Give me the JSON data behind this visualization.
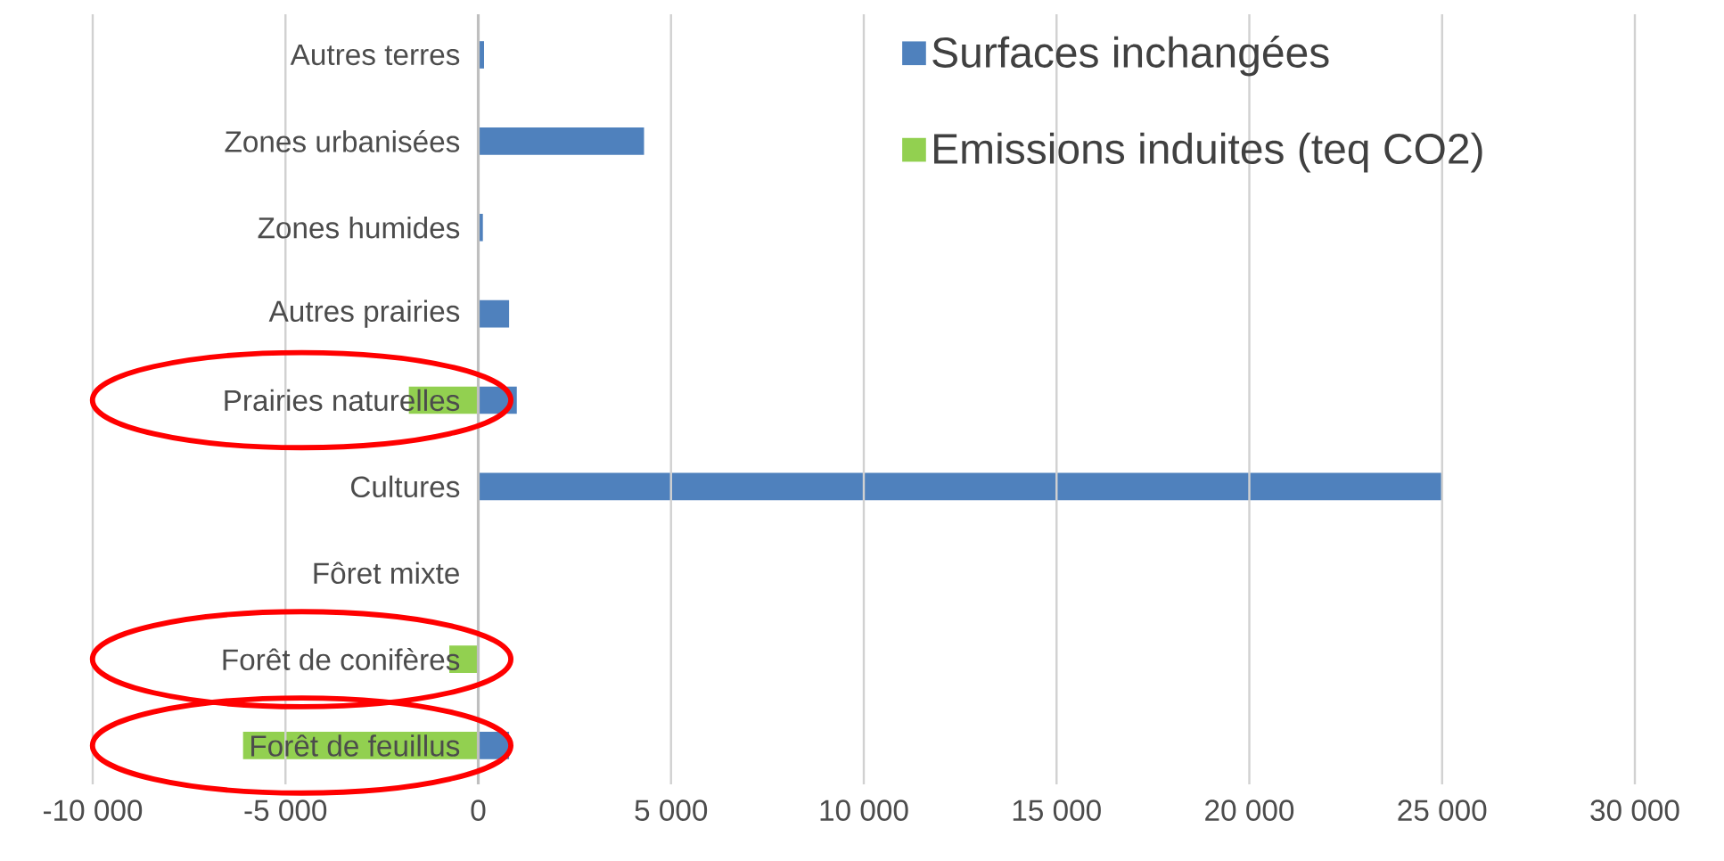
{
  "chart_data": {
    "type": "bar",
    "orientation": "horizontal",
    "categories": [
      "Autres terres",
      "Zones urbanisées",
      "Zones humides",
      "Autres prairies",
      "Prairies naturelles",
      "Cultures",
      "Fôret mixte",
      "Forêt de conifères",
      "Forêt de feuillus"
    ],
    "series": [
      {
        "name": "Surfaces inchangées",
        "color": "#4f81bd",
        "values": [
          150,
          4300,
          120,
          800,
          1000,
          25000,
          null,
          null,
          800
        ]
      },
      {
        "name": "Emissions induites (teq CO2)",
        "color": "#92d050",
        "values": [
          null,
          null,
          null,
          null,
          -1800,
          null,
          null,
          -750,
          -6100
        ]
      }
    ],
    "xlim": [
      -10000,
      30000
    ],
    "xticks": [
      {
        "value": -10000,
        "label": "-10 000"
      },
      {
        "value": -5000,
        "label": "-5 000"
      },
      0,
      {
        "value": 5000,
        "label": "5 000"
      },
      {
        "value": 10000,
        "label": "10 000"
      },
      {
        "value": 15000,
        "label": "15 000"
      },
      {
        "value": 20000,
        "label": "20 000"
      },
      {
        "value": 25000,
        "label": "25 000"
      },
      {
        "value": 30000,
        "label": "30 000"
      }
    ],
    "grid": "x",
    "legend": "top right"
  }
}
